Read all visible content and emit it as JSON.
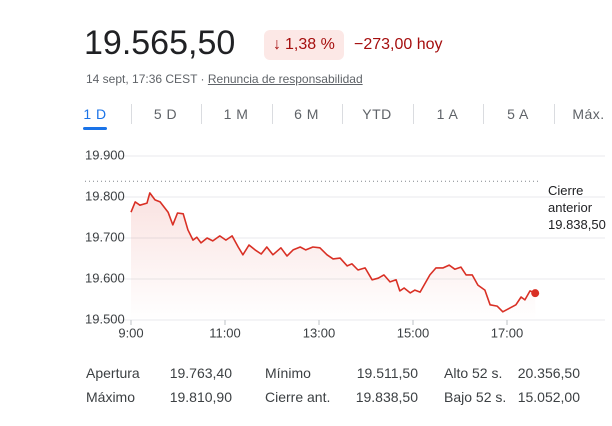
{
  "header": {
    "price": "19.565,50",
    "change_percent": "1,38 %",
    "change_abs": "−273,00 hoy",
    "timestamp": "14 sept, 17:36 CEST",
    "disclaimer": "Renuncia de responsabilidad"
  },
  "tabs": [
    "1 D",
    "5 D",
    "1 M",
    "6 M",
    "YTD",
    "1 A",
    "5 A",
    "Máx."
  ],
  "chart_data": {
    "type": "line",
    "color": "#d93025",
    "grid": true,
    "x": [
      9.0,
      9.09,
      9.19,
      9.34,
      9.4,
      9.51,
      9.62,
      9.79,
      9.89,
      9.99,
      10.11,
      10.21,
      10.32,
      10.4,
      10.49,
      10.62,
      10.74,
      10.89,
      11.02,
      11.15,
      11.28,
      11.38,
      11.51,
      11.64,
      11.77,
      11.89,
      12.02,
      12.19,
      12.32,
      12.45,
      12.6,
      12.72,
      12.87,
      13.02,
      13.17,
      13.3,
      13.45,
      13.6,
      13.7,
      13.83,
      13.98,
      14.13,
      14.26,
      14.38,
      14.51,
      14.64,
      14.72,
      14.81,
      14.94,
      15.04,
      15.15,
      15.26,
      15.36,
      15.49,
      15.64,
      15.77,
      15.89,
      16.02,
      16.13,
      16.26,
      16.38,
      16.53,
      16.64,
      16.79,
      16.91,
      17.06,
      17.19,
      17.3,
      17.38,
      17.49,
      17.6
    ],
    "values": [
      19763,
      19788,
      19780,
      19785,
      19810,
      19793,
      19788,
      19763,
      19732,
      19761,
      19759,
      19720,
      19695,
      19702,
      19688,
      19700,
      19693,
      19705,
      19695,
      19705,
      19678,
      19659,
      19683,
      19671,
      19661,
      19678,
      19659,
      19676,
      19656,
      19671,
      19678,
      19671,
      19678,
      19676,
      19659,
      19649,
      19651,
      19632,
      19637,
      19622,
      19627,
      19598,
      19602,
      19610,
      19593,
      19598,
      19571,
      19578,
      19566,
      19573,
      19568,
      19590,
      19610,
      19627,
      19627,
      19634,
      19624,
      19629,
      19610,
      19610,
      19585,
      19573,
      19537,
      19534,
      19520,
      19529,
      19537,
      19556,
      19549,
      19571,
      19565.5
    ],
    "xlim": [
      9,
      19
    ],
    "xticks": [
      {
        "value": 9,
        "label": "9:00"
      },
      {
        "value": 11,
        "label": "11:00"
      },
      {
        "value": 13,
        "label": "13:00"
      },
      {
        "value": 15,
        "label": "15:00"
      },
      {
        "value": 17,
        "label": "17:00"
      }
    ],
    "ylim": [
      19500,
      19900
    ],
    "yticks": [
      {
        "value": 19500,
        "label": "19.500"
      },
      {
        "value": 19600,
        "label": "19.600"
      },
      {
        "value": 19700,
        "label": "19.700"
      },
      {
        "value": 19800,
        "label": "19.800"
      },
      {
        "value": 19900,
        "label": "19.900"
      }
    ],
    "reference_title": "Cierre anterior",
    "reference_line": {
      "value": 19838.5,
      "label": "19.838,50"
    }
  },
  "stats": [
    [
      [
        "Apertura",
        "19.763,40"
      ],
      [
        "Mínimo",
        "19.511,50"
      ],
      [
        "Alto 52 s.",
        "20.356,50"
      ]
    ],
    [
      [
        "Máximo",
        "19.810,90"
      ],
      [
        "Cierre ant.",
        "19.838,50"
      ],
      [
        "Bajo 52 s.",
        "15.052,00"
      ]
    ]
  ]
}
